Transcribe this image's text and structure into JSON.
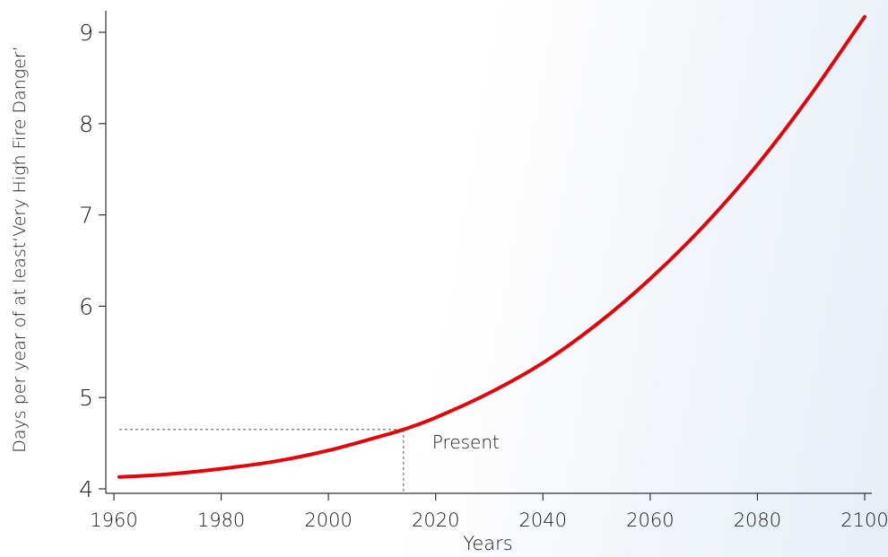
{
  "chart_data": {
    "type": "line",
    "title": "",
    "xlabel": "Years",
    "ylabel": "Days per year of at least‘Very High Fire Danger’",
    "xlim": [
      1960,
      2100
    ],
    "ylim": [
      4,
      9
    ],
    "x_ticks": [
      1960,
      1980,
      2000,
      2020,
      2040,
      2060,
      2080,
      2100
    ],
    "y_ticks": [
      4,
      5,
      6,
      7,
      8,
      9
    ],
    "grid": false,
    "series": [
      {
        "color": "#e0060a",
        "x": [
          1961,
          1970,
          1980,
          1990,
          2000,
          2010,
          2014,
          2020,
          2030,
          2040,
          2050,
          2060,
          2070,
          2080,
          2090,
          2100
        ],
        "y": [
          4.13,
          4.16,
          4.22,
          4.3,
          4.42,
          4.58,
          4.65,
          4.78,
          5.05,
          5.38,
          5.8,
          6.3,
          6.88,
          7.55,
          8.32,
          9.17
        ]
      }
    ],
    "annotations": [
      {
        "text": "Present",
        "x": 2014,
        "y": 4.65
      }
    ]
  }
}
